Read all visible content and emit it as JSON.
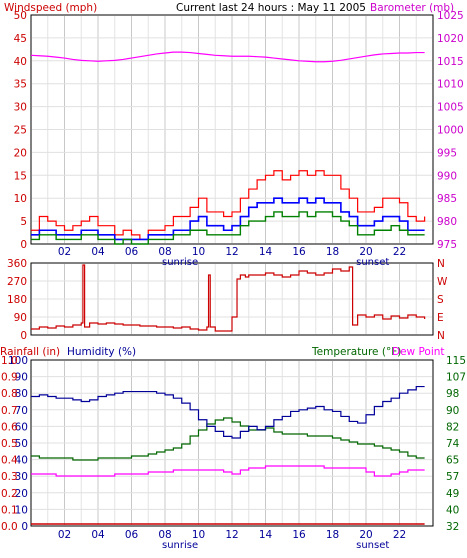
{
  "colors": {
    "frame": "#000000",
    "grid": "#c8c8c8",
    "wind_avg": "#008000",
    "wind_mid": "#0000ff",
    "wind_gust": "#ff0000",
    "barometer": "#ff00ff",
    "direction": "#cc0000",
    "humidity": "#000099",
    "temperature": "#006600",
    "dewpoint": "#ff00ff",
    "rainfall": "#cc0000",
    "label_blue": "#000099",
    "label_green": "#006600",
    "label_magenta": "#ff00ff",
    "label_red": "#cc0000"
  },
  "header": {
    "title": "Current last 24 hours : May 11 2005",
    "left_label": "Windspeed (mph)",
    "right_label": "Barometer (mb)"
  },
  "direction_panel": {
    "right_labels": [
      "N",
      "W",
      "S",
      "E",
      "N"
    ]
  },
  "bottom_panel": {
    "rainfall_label": "Rainfall (in)",
    "humidity_label": "Humidity (%)",
    "temperature_label": "Temperature (°F)",
    "dewpoint_label": "Dew Point"
  },
  "time_axis": {
    "ticks": [
      "02",
      "04",
      "06",
      "08",
      "10",
      "12",
      "14",
      "16",
      "18",
      "20",
      "22"
    ],
    "sunrise": "sunrise",
    "sunset": "sunset"
  },
  "chart_data": [
    {
      "type": "line",
      "name": "wind_barometer",
      "x_hours": [
        0,
        0.5,
        1,
        1.5,
        2,
        2.5,
        3,
        3.5,
        4,
        4.5,
        5,
        5.5,
        6,
        6.5,
        7,
        7.5,
        8,
        8.5,
        9,
        9.5,
        10,
        10.5,
        11,
        11.5,
        12,
        12.5,
        13,
        13.5,
        14,
        14.5,
        15,
        15.5,
        16,
        16.5,
        17,
        17.5,
        18,
        18.5,
        19,
        19.5,
        20,
        20.5,
        21,
        21.5,
        22,
        22.5,
        23,
        23.5
      ],
      "yleft_ticks": [
        0,
        5,
        10,
        15,
        20,
        25,
        30,
        35,
        40,
        45,
        50
      ],
      "yleft_range": [
        0,
        50
      ],
      "yright_ticks": [
        975,
        980,
        985,
        990,
        995,
        1000,
        1005,
        1010,
        1015,
        1020,
        1025
      ],
      "yright_range": [
        975,
        1025
      ],
      "barometer": [
        1016.2,
        1016.1,
        1016.0,
        1015.8,
        1015.6,
        1015.3,
        1015.1,
        1015.0,
        1014.9,
        1015.0,
        1015.1,
        1015.3,
        1015.6,
        1015.9,
        1016.2,
        1016.5,
        1016.7,
        1016.9,
        1016.9,
        1016.8,
        1016.6,
        1016.4,
        1016.2,
        1016.1,
        1016.0,
        1016.0,
        1016.0,
        1015.9,
        1015.8,
        1015.6,
        1015.4,
        1015.2,
        1015.0,
        1014.9,
        1014.8,
        1014.8,
        1014.9,
        1015.1,
        1015.4,
        1015.7,
        1016.0,
        1016.3,
        1016.5,
        1016.6,
        1016.7,
        1016.7,
        1016.8,
        1016.8
      ],
      "wind_avg": [
        1,
        2,
        2,
        1,
        1,
        1,
        2,
        2,
        1,
        1,
        0,
        1,
        0,
        0,
        1,
        1,
        1,
        2,
        2,
        3,
        3,
        2,
        2,
        2,
        2,
        4,
        5,
        5,
        6,
        7,
        6,
        6,
        7,
        6,
        7,
        7,
        6,
        5,
        4,
        2,
        2,
        3,
        3,
        4,
        3,
        2,
        2,
        2
      ],
      "wind_mid": [
        2,
        3,
        3,
        2,
        2,
        2,
        3,
        3,
        2,
        2,
        1,
        1,
        1,
        1,
        2,
        2,
        2,
        3,
        3,
        5,
        6,
        4,
        4,
        3,
        4,
        6,
        8,
        9,
        9,
        10,
        9,
        9,
        10,
        9,
        10,
        9,
        9,
        7,
        6,
        4,
        4,
        5,
        6,
        6,
        5,
        3,
        3,
        3
      ],
      "wind_gust": [
        3,
        6,
        5,
        4,
        3,
        4,
        5,
        6,
        4,
        4,
        2,
        3,
        2,
        1,
        3,
        3,
        4,
        6,
        6,
        8,
        10,
        7,
        7,
        6,
        7,
        10,
        12,
        14,
        15,
        16,
        14,
        15,
        16,
        15,
        16,
        15,
        15,
        12,
        10,
        7,
        7,
        8,
        10,
        10,
        9,
        6,
        5,
        6
      ]
    },
    {
      "type": "line",
      "name": "wind_direction",
      "x_hours": [
        0,
        0.5,
        1,
        1.5,
        2,
        2.5,
        3,
        3.1,
        3.2,
        3.5,
        4,
        4.5,
        5,
        5.5,
        6,
        6.5,
        7,
        7.5,
        8,
        8.5,
        9,
        9.5,
        10,
        10.5,
        10.6,
        10.7,
        11,
        11.5,
        12,
        12.3,
        12.5,
        12.8,
        13,
        13.5,
        14,
        14.5,
        15,
        15.5,
        16,
        16.5,
        17,
        17.5,
        18,
        18.5,
        19,
        19.2,
        19.5,
        20,
        20.5,
        21,
        21.5,
        22,
        22.5,
        23,
        23.5
      ],
      "y_ticks": [
        0,
        90,
        180,
        270,
        360
      ],
      "y_range": [
        0,
        360
      ],
      "direction": [
        30,
        40,
        35,
        45,
        40,
        50,
        60,
        350,
        40,
        60,
        55,
        60,
        55,
        50,
        50,
        45,
        45,
        40,
        40,
        35,
        40,
        30,
        25,
        40,
        300,
        40,
        20,
        20,
        90,
        280,
        300,
        290,
        300,
        300,
        310,
        300,
        290,
        300,
        320,
        310,
        300,
        310,
        330,
        320,
        340,
        50,
        100,
        90,
        100,
        80,
        95,
        85,
        100,
        90,
        80
      ]
    },
    {
      "type": "line",
      "name": "humidity_temperature",
      "x_hours": [
        0,
        0.5,
        1,
        1.5,
        2,
        2.5,
        3,
        3.5,
        4,
        4.5,
        5,
        5.5,
        6,
        6.5,
        7,
        7.5,
        8,
        8.5,
        9,
        9.5,
        10,
        10.5,
        11,
        11.5,
        12,
        12.5,
        13,
        13.5,
        14,
        14.5,
        15,
        15.5,
        16,
        16.5,
        17,
        17.5,
        18,
        18.5,
        19,
        19.5,
        20,
        20.5,
        21,
        21.5,
        22,
        22.5,
        23,
        23.5
      ],
      "humidity_ticks": [
        0,
        10,
        20,
        30,
        40,
        50,
        60,
        70,
        80,
        90,
        100
      ],
      "humidity_range": [
        0,
        100
      ],
      "rainfall_ticks": [
        0.0,
        0.1,
        0.2,
        0.3,
        0.4,
        0.5,
        0.6,
        0.7,
        0.8,
        0.9,
        1.0
      ],
      "rainfall_range": [
        0,
        1
      ],
      "temperature_ticks": [
        32,
        40,
        49,
        57,
        65,
        74,
        82,
        90,
        98,
        107,
        115
      ],
      "temperature_range": [
        32,
        115
      ],
      "humidity": [
        78,
        79,
        78,
        77,
        77,
        76,
        75,
        76,
        78,
        79,
        80,
        81,
        81,
        81,
        81,
        80,
        79,
        77,
        74,
        70,
        64,
        60,
        57,
        54,
        53,
        57,
        60,
        58,
        60,
        64,
        66,
        69,
        70,
        71,
        72,
        70,
        69,
        66,
        63,
        62,
        67,
        72,
        75,
        77,
        80,
        82,
        84,
        84
      ],
      "temperature": [
        67,
        66,
        66,
        66,
        66,
        65,
        65,
        65,
        66,
        66,
        66,
        66,
        67,
        67,
        68,
        69,
        70,
        71,
        73,
        77,
        80,
        83,
        85,
        86,
        84,
        82,
        80,
        80,
        81,
        79,
        78,
        78,
        78,
        77,
        77,
        77,
        76,
        75,
        74,
        73,
        73,
        72,
        71,
        70,
        69,
        67,
        66,
        66
      ],
      "dewpoint": [
        58,
        58,
        58,
        57,
        57,
        57,
        57,
        57,
        57,
        57,
        58,
        58,
        58,
        58,
        59,
        59,
        59,
        60,
        60,
        60,
        60,
        60,
        60,
        59,
        58,
        60,
        61,
        61,
        62,
        62,
        62,
        62,
        62,
        62,
        62,
        61,
        61,
        61,
        61,
        61,
        59,
        57,
        57,
        58,
        59,
        60,
        60,
        60
      ],
      "rainfall": [
        0,
        0,
        0,
        0,
        0,
        0,
        0,
        0,
        0,
        0,
        0,
        0,
        0,
        0,
        0,
        0,
        0,
        0,
        0,
        0,
        0,
        0,
        0,
        0,
        0,
        0,
        0,
        0,
        0,
        0,
        0,
        0,
        0,
        0,
        0,
        0,
        0,
        0,
        0,
        0,
        0,
        0,
        0,
        0,
        0,
        0,
        0,
        0
      ]
    }
  ]
}
